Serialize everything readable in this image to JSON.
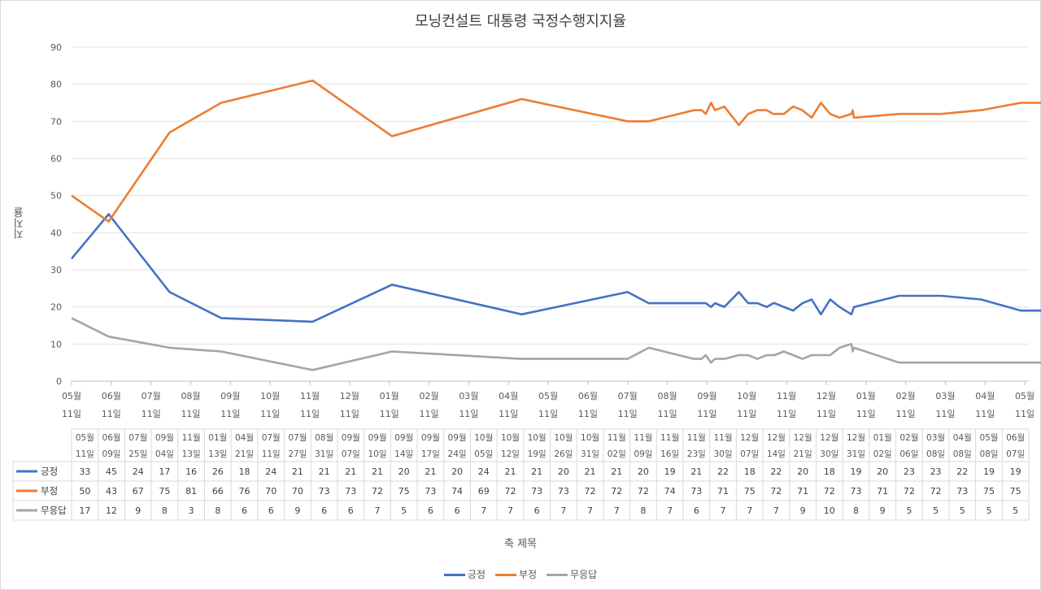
{
  "chart_data": {
    "type": "line",
    "title": "모닝컨설트 대통령 국정수행지지율",
    "ylabel": "지지율",
    "xlabel": "축 제목",
    "ylim": [
      0,
      90
    ],
    "yticks": [
      0,
      10,
      20,
      30,
      40,
      50,
      60,
      70,
      80,
      90
    ],
    "grid": true,
    "legend_position": "bottom",
    "axis_ticks": [
      [
        "05월",
        "11일"
      ],
      [
        "06월",
        "11일"
      ],
      [
        "07월",
        "11일"
      ],
      [
        "08월",
        "11일"
      ],
      [
        "09월",
        "11일"
      ],
      [
        "10월",
        "11일"
      ],
      [
        "11월",
        "11일"
      ],
      [
        "12월",
        "11일"
      ],
      [
        "01월",
        "11일"
      ],
      [
        "02월",
        "11일"
      ],
      [
        "03월",
        "11일"
      ],
      [
        "04월",
        "11일"
      ],
      [
        "05월",
        "11일"
      ],
      [
        "06월",
        "11일"
      ],
      [
        "07월",
        "11일"
      ],
      [
        "08월",
        "11일"
      ],
      [
        "09월",
        "11일"
      ],
      [
        "10월",
        "11일"
      ],
      [
        "11월",
        "11일"
      ],
      [
        "12월",
        "11일"
      ],
      [
        "01월",
        "11일"
      ],
      [
        "02월",
        "11일"
      ],
      [
        "03월",
        "11일"
      ],
      [
        "04월",
        "11일"
      ],
      [
        "05월",
        "11일"
      ]
    ],
    "categories": [
      [
        "05월",
        "11일"
      ],
      [
        "06월",
        "09일"
      ],
      [
        "07월",
        "25일"
      ],
      [
        "09월",
        "04일"
      ],
      [
        "11월",
        "13일"
      ],
      [
        "01월",
        "13일"
      ],
      [
        "04월",
        "21일"
      ],
      [
        "07월",
        "11일"
      ],
      [
        "07월",
        "27일"
      ],
      [
        "08월",
        "31일"
      ],
      [
        "09월",
        "07일"
      ],
      [
        "09월",
        "10일"
      ],
      [
        "09월",
        "14일"
      ],
      [
        "09월",
        "17일"
      ],
      [
        "09월",
        "24일"
      ],
      [
        "10월",
        "05일"
      ],
      [
        "10월",
        "12일"
      ],
      [
        "10월",
        "19일"
      ],
      [
        "10월",
        "26일"
      ],
      [
        "10월",
        "31일"
      ],
      [
        "11월",
        "02일"
      ],
      [
        "11월",
        "09일"
      ],
      [
        "11월",
        "16일"
      ],
      [
        "11월",
        "23일"
      ],
      [
        "11월",
        "30일"
      ],
      [
        "12월",
        "07일"
      ],
      [
        "12월",
        "14일"
      ],
      [
        "12월",
        "21일"
      ],
      [
        "12월",
        "30일"
      ],
      [
        "12월",
        "31일"
      ],
      [
        "01월",
        "02일"
      ],
      [
        "02월",
        "06일"
      ],
      [
        "03월",
        "08일"
      ],
      [
        "04월",
        "08일"
      ],
      [
        "05월",
        "08일"
      ],
      [
        "06월",
        "07일"
      ]
    ],
    "series": [
      {
        "name": "긍정",
        "color": "#4472c4",
        "values": [
          33,
          45,
          24,
          17,
          16,
          26,
          18,
          24,
          21,
          21,
          21,
          21,
          20,
          21,
          20,
          24,
          21,
          21,
          20,
          21,
          21,
          20,
          19,
          21,
          22,
          18,
          22,
          20,
          18,
          19,
          20,
          23,
          23,
          22,
          19,
          19
        ]
      },
      {
        "name": "부정",
        "color": "#ed7d31",
        "values": [
          50,
          43,
          67,
          75,
          81,
          66,
          76,
          70,
          70,
          73,
          73,
          72,
          75,
          73,
          74,
          69,
          72,
          73,
          73,
          72,
          72,
          72,
          74,
          73,
          71,
          75,
          72,
          71,
          72,
          73,
          71,
          72,
          72,
          73,
          75,
          75
        ]
      },
      {
        "name": "무응답",
        "color": "#a5a5a5",
        "values": [
          17,
          12,
          9,
          8,
          3,
          8,
          6,
          6,
          9,
          6,
          6,
          7,
          5,
          6,
          6,
          7,
          7,
          6,
          7,
          7,
          7,
          8,
          7,
          6,
          7,
          7,
          7,
          9,
          10,
          8,
          9,
          5,
          5,
          5,
          5,
          5
        ]
      }
    ]
  }
}
